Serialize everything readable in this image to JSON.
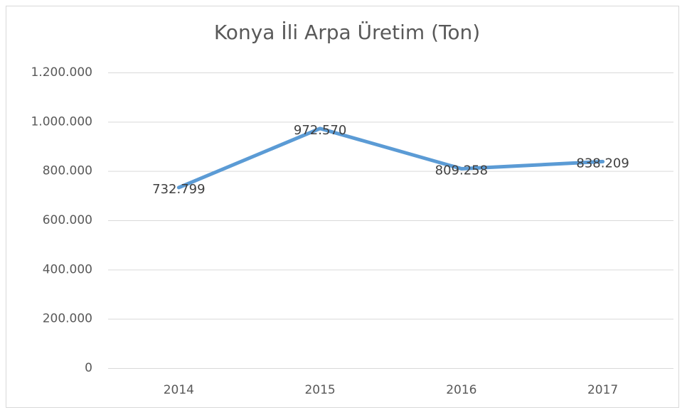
{
  "chart_data": {
    "type": "line",
    "title": "Konya İli Arpa Üretim (Ton)",
    "categories": [
      "2014",
      "2015",
      "2016",
      "2017"
    ],
    "values": [
      732799,
      972570,
      809258,
      838209
    ],
    "value_labels": [
      "732.799",
      "972.570",
      "809.258",
      "838.209"
    ],
    "color": "#5b9bd5",
    "ylim": [
      0,
      1200000
    ],
    "yticks": [
      0,
      {
        "value": 200000,
        "label": "200.000"
      },
      {
        "value": 400000,
        "label": "400.000"
      },
      {
        "value": 600000,
        "label": "600.000"
      },
      {
        "value": 800000,
        "label": "800.000"
      },
      {
        "value": 1000000,
        "label": "1.000.000"
      },
      {
        "value": 1200000,
        "label": "1.200.000"
      }
    ],
    "grid": true
  }
}
